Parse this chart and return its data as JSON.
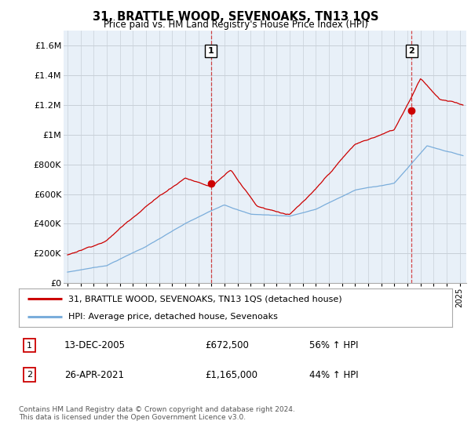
{
  "title": "31, BRATTLE WOOD, SEVENOAKS, TN13 1QS",
  "subtitle": "Price paid vs. HM Land Registry's House Price Index (HPI)",
  "legend_line1": "31, BRATTLE WOOD, SEVENOAKS, TN13 1QS (detached house)",
  "legend_line2": "HPI: Average price, detached house, Sevenoaks",
  "sale1_date": "13-DEC-2005",
  "sale1_price": "£672,500",
  "sale1_hpi": "56% ↑ HPI",
  "sale1_year": 2005.96,
  "sale1_value": 672500,
  "sale2_date": "26-APR-2021",
  "sale2_price": "£1,165,000",
  "sale2_hpi": "44% ↑ HPI",
  "sale2_year": 2021.32,
  "sale2_value": 1165000,
  "footnote": "Contains HM Land Registry data © Crown copyright and database right 2024.\nThis data is licensed under the Open Government Licence v3.0.",
  "ylim": [
    0,
    1700000
  ],
  "xlim_start": 1994.7,
  "xlim_end": 2025.5,
  "red_color": "#cc0000",
  "blue_color": "#7aaddb",
  "chart_bg": "#e8f0f8",
  "background_color": "#ffffff",
  "grid_color": "#c8d0d8",
  "yticks": [
    0,
    200000,
    400000,
    600000,
    800000,
    1000000,
    1200000,
    1400000,
    1600000
  ],
  "ytick_labels": [
    "£0",
    "£200K",
    "£400K",
    "£600K",
    "£800K",
    "£1M",
    "£1.2M",
    "£1.4M",
    "£1.6M"
  ]
}
